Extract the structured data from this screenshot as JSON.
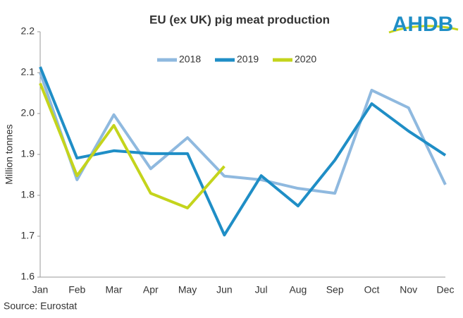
{
  "chart_data": {
    "type": "line",
    "title": "EU (ex UK) pig meat production",
    "logo": "AHDB",
    "source": "Source:  Eurostat",
    "ylabel": "Million tonnes",
    "categories": [
      "Jan",
      "Feb",
      "Mar",
      "Apr",
      "May",
      "Jun",
      "Jul",
      "Aug",
      "Sep",
      "Oct",
      "Nov",
      "Dec"
    ],
    "series": [
      {
        "name": "2018",
        "color": "#8fb9df",
        "values": [
          2.1,
          1.838,
          1.997,
          1.865,
          1.941,
          1.847,
          1.838,
          1.817,
          1.805,
          2.057,
          2.014,
          1.826
        ]
      },
      {
        "name": "2019",
        "color": "#1f8ec6",
        "values": [
          2.114,
          1.891,
          1.909,
          1.902,
          1.902,
          1.703,
          1.848,
          1.774,
          1.886,
          2.024,
          1.957,
          1.898
        ]
      },
      {
        "name": "2020",
        "color": "#c4d41c",
        "values": [
          2.074,
          1.848,
          1.971,
          1.805,
          1.769,
          1.871,
          null,
          null,
          null,
          null,
          null,
          null
        ]
      }
    ],
    "ylim": [
      1.6,
      2.2
    ],
    "yticks": [
      1.6,
      1.7,
      1.8,
      1.9,
      {
        "value": 2,
        "label": "2.0"
      },
      2.1,
      2.2
    ],
    "grid": false,
    "legend": "top"
  }
}
